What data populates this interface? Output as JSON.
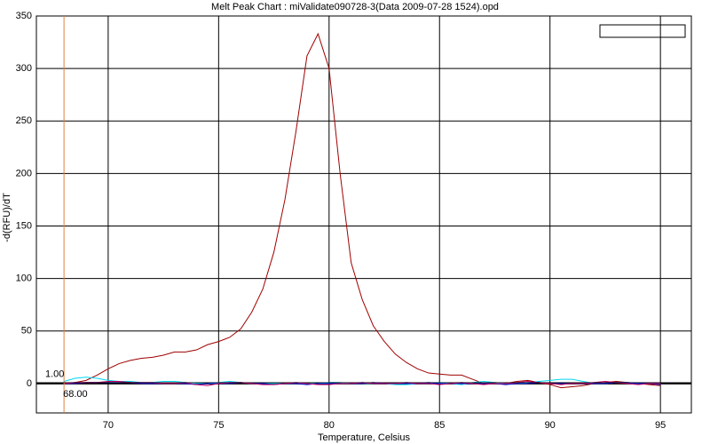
{
  "chart_data": {
    "type": "line",
    "title": "Melt Peak Chart : miValidate090728-3(Data 2009-07-28 1524).opd",
    "x_label": "Temperature, Celsius",
    "y_label": "-d(RFU)/dT",
    "x": [
      68,
      68.5,
      69,
      69.5,
      70,
      70.5,
      71,
      71.5,
      72,
      72.5,
      73,
      73.5,
      74,
      74.5,
      75,
      75.5,
      76,
      76.5,
      77,
      77.5,
      78,
      78.5,
      79,
      79.5,
      80,
      80.5,
      81,
      81.5,
      82,
      82.5,
      83,
      83.5,
      84,
      84.5,
      85,
      85.5,
      86,
      86.5,
      87,
      87.5,
      88,
      88.5,
      89,
      89.5,
      90,
      90.5,
      91,
      91.5,
      92,
      92.5,
      93,
      93.5,
      94,
      94.5,
      95
    ],
    "series": [
      {
        "color": "#a00000",
        "values": [
          0,
          1,
          3,
          8,
          14,
          19,
          22,
          24,
          25,
          27,
          30,
          30,
          32,
          37,
          40,
          44,
          52,
          68,
          90,
          125,
          175,
          240,
          312,
          333,
          300,
          200,
          115,
          80,
          55,
          40,
          28,
          20,
          14,
          10,
          9,
          8,
          8,
          4,
          0,
          1,
          0,
          2,
          3,
          1,
          -1,
          -4,
          -3,
          -2,
          0,
          1,
          2,
          1,
          0,
          -1,
          -2
        ]
      },
      {
        "color": "#00d8f0",
        "values": [
          2,
          5,
          6,
          5,
          3,
          2,
          2,
          1,
          1,
          2,
          2,
          1,
          0,
          0,
          1,
          2,
          1,
          0,
          0,
          0,
          0,
          0,
          0,
          0,
          1,
          1,
          0,
          0,
          0,
          0,
          -1,
          -1,
          0,
          0,
          1,
          0,
          -1,
          1,
          2,
          1,
          0,
          0,
          1,
          2,
          3,
          4,
          4,
          2,
          0,
          0,
          1,
          1,
          0,
          0,
          0
        ]
      },
      {
        "color": "#0000c0",
        "values": [
          0,
          0,
          1,
          1,
          1,
          1,
          1,
          0,
          0,
          0,
          0,
          0,
          -1,
          0,
          0,
          0,
          1,
          0,
          0,
          -1,
          0,
          0,
          -1,
          0,
          0,
          0,
          0,
          0,
          1,
          0,
          0,
          0,
          0,
          1,
          0,
          0,
          0,
          0,
          0,
          0,
          -1,
          0,
          0,
          1,
          0,
          0,
          0,
          0,
          0,
          0,
          1,
          1,
          0,
          0,
          -1
        ]
      },
      {
        "color": "#c00060",
        "values": [
          0,
          1,
          1,
          1,
          2,
          2,
          1,
          1,
          1,
          0,
          0,
          1,
          -1,
          -2,
          0,
          1,
          1,
          0,
          -1,
          -1,
          0,
          1,
          0,
          -1,
          -1,
          0,
          0,
          1,
          0,
          0,
          0,
          1,
          0,
          0,
          -1,
          0,
          1,
          0,
          -1,
          0,
          0,
          1,
          2,
          1,
          0,
          -1,
          0,
          0,
          1,
          2,
          1,
          0,
          -1,
          0,
          0
        ]
      }
    ],
    "xlim": [
      66.75,
      96.4
    ],
    "ylim": [
      -28,
      350
    ],
    "xticks": [
      70,
      75,
      80,
      85,
      90,
      95
    ],
    "yticks": [
      0,
      50,
      100,
      150,
      200,
      250,
      300,
      350
    ],
    "grid": true,
    "threshold_x": {
      "value": 68,
      "label": "68.00"
    },
    "threshold_y": {
      "value": 1,
      "label": "1.00"
    }
  }
}
